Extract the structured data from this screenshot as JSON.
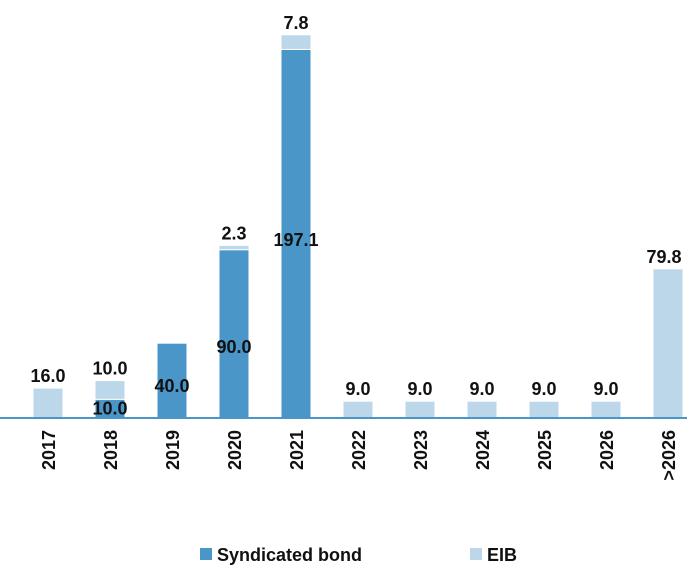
{
  "chart_data": {
    "type": "bar",
    "stacked": true,
    "categories": [
      "2017",
      "2018",
      "2019",
      "2020",
      "2021",
      "2022",
      "2023",
      "2024",
      "2025",
      "2026",
      ">2026"
    ],
    "series": [
      {
        "name": "Syndicated bond",
        "color": "#4a96c8",
        "values": [
          0,
          10.0,
          40.0,
          90.0,
          197.1,
          0,
          0,
          0,
          0,
          0,
          0
        ]
      },
      {
        "name": "EIB",
        "color": "#bcd7ea",
        "values": [
          16.0,
          10.0,
          0,
          2.3,
          7.8,
          9.0,
          9.0,
          9.0,
          9.0,
          9.0,
          79.8
        ]
      }
    ],
    "data_labels": [
      {
        "category": "2017",
        "series": "EIB",
        "text": "16.0"
      },
      {
        "category": "2018",
        "series": "EIB",
        "text": "10.0"
      },
      {
        "category": "2018",
        "series": "Syndicated bond",
        "text": "10.0"
      },
      {
        "category": "2019",
        "series": "Syndicated bond",
        "text": "40.0"
      },
      {
        "category": "2020",
        "series": "Syndicated bond",
        "text": "90.0"
      },
      {
        "category": "2020",
        "series": "EIB",
        "text": "2.3"
      },
      {
        "category": "2021",
        "series": "Syndicated bond",
        "text": "197.1"
      },
      {
        "category": "2021",
        "series": "EIB",
        "text": "7.8"
      },
      {
        "category": "2022",
        "series": "EIB",
        "text": "9.0"
      },
      {
        "category": "2023",
        "series": "EIB",
        "text": "9.0"
      },
      {
        "category": "2024",
        "series": "EIB",
        "text": "9.0"
      },
      {
        "category": "2025",
        "series": "EIB",
        "text": "9.0"
      },
      {
        "category": "2026",
        "series": "EIB",
        "text": "9.0"
      },
      {
        "category": ">2026",
        "series": "EIB",
        "text": "79.8"
      }
    ],
    "title": "",
    "xlabel": "",
    "ylabel": "",
    "ylim": [
      0,
      210
    ],
    "grid": false,
    "y_axis_visible": false,
    "legend_position": "bottom"
  }
}
